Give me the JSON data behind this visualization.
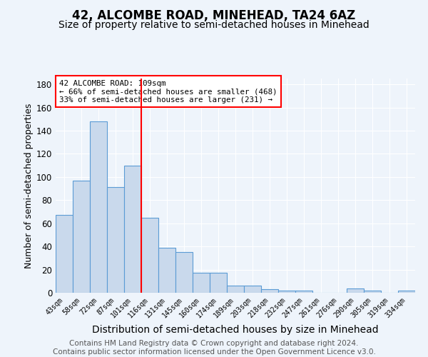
{
  "title": "42, ALCOMBE ROAD, MINEHEAD, TA24 6AZ",
  "subtitle": "Size of property relative to semi-detached houses in Minehead",
  "xlabel": "Distribution of semi-detached houses by size in Minehead",
  "ylabel": "Number of semi-detached properties",
  "categories": [
    "43sqm",
    "58sqm",
    "72sqm",
    "87sqm",
    "101sqm",
    "116sqm",
    "131sqm",
    "145sqm",
    "160sqm",
    "174sqm",
    "189sqm",
    "203sqm",
    "218sqm",
    "232sqm",
    "247sqm",
    "261sqm",
    "276sqm",
    "290sqm",
    "305sqm",
    "319sqm",
    "334sqm"
  ],
  "values": [
    67,
    97,
    148,
    91,
    110,
    65,
    39,
    35,
    17,
    17,
    6,
    6,
    3,
    2,
    2,
    0,
    0,
    4,
    2,
    0,
    2
  ],
  "bar_color": "#c9d9ec",
  "bar_edge_color": "#5b9bd5",
  "vline_x": 5,
  "vline_color": "red",
  "annotation_text": "42 ALCOMBE ROAD: 109sqm\n← 66% of semi-detached houses are smaller (468)\n33% of semi-detached houses are larger (231) →",
  "annotation_box_color": "white",
  "annotation_box_edge_color": "red",
  "ylim": [
    0,
    185
  ],
  "yticks": [
    0,
    20,
    40,
    60,
    80,
    100,
    120,
    140,
    160,
    180
  ],
  "footer": "Contains HM Land Registry data © Crown copyright and database right 2024.\nContains public sector information licensed under the Open Government Licence v3.0.",
  "background_color": "#eef4fb",
  "grid_color": "#ffffff",
  "title_fontsize": 12,
  "subtitle_fontsize": 10,
  "xlabel_fontsize": 10,
  "ylabel_fontsize": 9,
  "footer_fontsize": 7.5
}
